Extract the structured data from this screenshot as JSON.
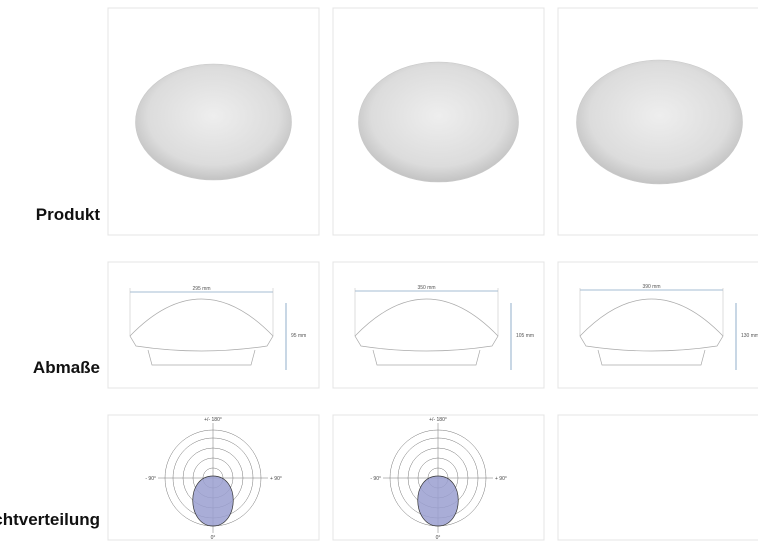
{
  "rows": [
    {
      "label": "Produkt"
    },
    {
      "label": "Abmaße",
      "cells": [
        {
          "width": "295 mm",
          "height": "95 mm"
        },
        {
          "width": "350 mm",
          "height": "105 mm"
        },
        {
          "width": "390 mm",
          "height": "130 mm"
        }
      ]
    },
    {
      "label": "Lichtverteilung",
      "cells": [
        {
          "top": "+/- 180°",
          "left": "- 90°",
          "right": "+ 90°",
          "bottom": "0°"
        },
        {
          "top": "+/- 180°",
          "left": "- 90°",
          "right": "+ 90°",
          "bottom": "0°"
        }
      ]
    }
  ]
}
